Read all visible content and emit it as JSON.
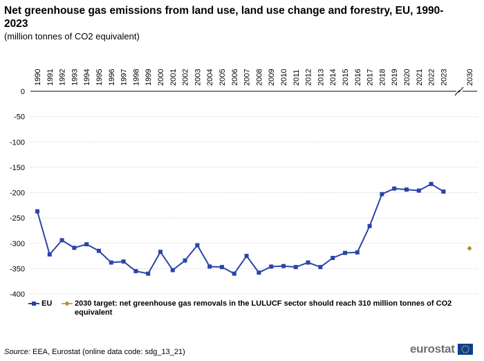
{
  "title": "Net greenhouse gas emissions from land use, land use change and forestry, EU, 1990-2023",
  "subtitle": "(million tonnes of CO2 equivalent)",
  "source_label": "Source:",
  "source_text": "EEA, Eurostat (online data code: sdg_13_21)",
  "logo_text": "eurostat",
  "colors": {
    "eu_series": "#2a44a8",
    "target": "#b58a1f",
    "grid": "#d9d9d9",
    "axis": "#000000",
    "logo": "#6d7279",
    "flag": "#0b3f91",
    "flag_stars": "#f4d00c"
  },
  "chart_data": {
    "type": "line",
    "title": "Net greenhouse gas emissions from land use, land use change and forestry, EU, 1990-2023",
    "ylabel": "million tonnes of CO2 equivalent",
    "ylim": [
      -400,
      0
    ],
    "yticks": [
      0,
      -50,
      -100,
      -150,
      -200,
      -250,
      -300,
      -350,
      -400
    ],
    "grid": true,
    "x_axis_break": "between 2023 and 2030",
    "categories": [
      "1990",
      "1991",
      "1992",
      "1993",
      "1994",
      "1995",
      "1996",
      "1997",
      "1998",
      "1999",
      "2000",
      "2001",
      "2002",
      "2003",
      "2004",
      "2005",
      "2006",
      "2007",
      "2008",
      "2009",
      "2010",
      "2011",
      "2012",
      "2013",
      "2014",
      "2015",
      "2016",
      "2017",
      "2018",
      "2019",
      "2020",
      "2021",
      "2022",
      "2023",
      "2030"
    ],
    "series": [
      {
        "name": "EU",
        "marker": "square",
        "values": [
          -237,
          -322,
          -294,
          -309,
          -302,
          -315,
          -338,
          -336,
          -355,
          -360,
          -317,
          -353,
          -334,
          -304,
          -346,
          -347,
          -360,
          -325,
          -358,
          -346,
          -345,
          -347,
          -338,
          -347,
          -329,
          -319,
          -318,
          -266,
          -203,
          -192,
          -194,
          -196,
          -183,
          -198,
          null
        ]
      },
      {
        "name": "2030 target: net greenhouse gas removals in the LULUCF sector should reach 310 million tonnes of CO2 equivalent",
        "marker": "diamond",
        "values": [
          null,
          null,
          null,
          null,
          null,
          null,
          null,
          null,
          null,
          null,
          null,
          null,
          null,
          null,
          null,
          null,
          null,
          null,
          null,
          null,
          null,
          null,
          null,
          null,
          null,
          null,
          null,
          null,
          null,
          null,
          null,
          null,
          null,
          null,
          -310
        ]
      }
    ]
  }
}
